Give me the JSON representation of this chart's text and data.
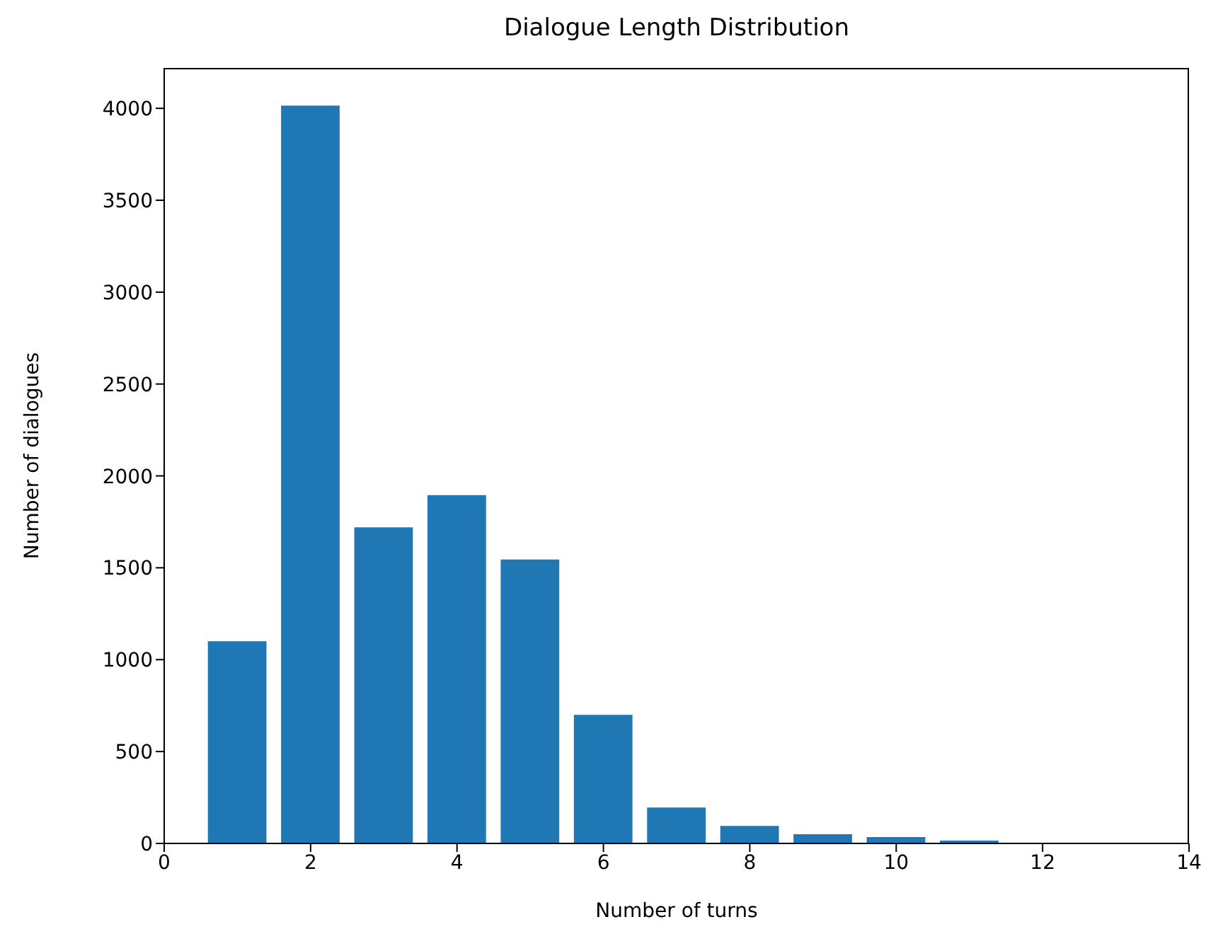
{
  "chart_data": {
    "type": "bar",
    "title": "Dialogue Length Distribution",
    "xlabel": "Number of turns",
    "ylabel": "Number of dialogues",
    "x": [
      1,
      2,
      3,
      4,
      5,
      6,
      7,
      8,
      9,
      10,
      11
    ],
    "values": [
      1100,
      4015,
      1720,
      1895,
      1545,
      700,
      195,
      95,
      50,
      35,
      15
    ],
    "color": "#1f77b4",
    "xlim": [
      0,
      14
    ],
    "xticks": [
      0,
      2,
      4,
      6,
      8,
      10,
      12,
      14
    ],
    "ylim": [
      0,
      4220
    ],
    "yticks": [
      0,
      500,
      1000,
      1500,
      2000,
      2500,
      3000,
      3500,
      4000
    ],
    "grid": false,
    "legend": false
  }
}
